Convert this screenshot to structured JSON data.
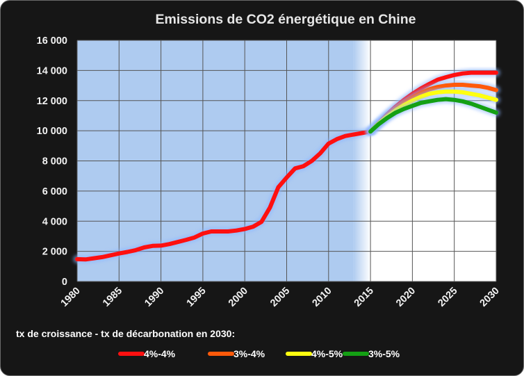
{
  "chart_data": {
    "type": "line",
    "title": "Emissions de CO2 énergétique en Chine",
    "xlabel": "",
    "ylabel": "",
    "xlim": [
      1980,
      2030
    ],
    "ylim": [
      0,
      16000
    ],
    "x_ticks": [
      "1980",
      "1985",
      "1990",
      "1995",
      "2000",
      "2005",
      "2010",
      "2015",
      "2020",
      "2025",
      "2030"
    ],
    "y_ticks": [
      "0",
      "2 000",
      "4 000",
      "6 000",
      "8 000",
      "10 000",
      "12 000",
      "14 000",
      "16 000"
    ],
    "grid": true,
    "historical_shading": [
      1980,
      2015
    ],
    "legend_title": "tx de croissance - tx de décarbonation en 2030:",
    "legend_position": "bottom",
    "historical": {
      "color": "#ff1010",
      "x": [
        1980,
        1981,
        1982,
        1983,
        1984,
        1985,
        1986,
        1987,
        1988,
        1989,
        1990,
        1991,
        1992,
        1993,
        1994,
        1995,
        1996,
        1997,
        1998,
        1999,
        2000,
        2001,
        2002,
        2003,
        2004,
        2005,
        2006,
        2007,
        2008,
        2009,
        2010,
        2011,
        2012,
        2013,
        2014,
        2015
      ],
      "y": [
        1480,
        1460,
        1540,
        1620,
        1740,
        1860,
        1960,
        2080,
        2260,
        2360,
        2380,
        2480,
        2620,
        2760,
        2920,
        3180,
        3320,
        3320,
        3320,
        3380,
        3480,
        3640,
        3960,
        4900,
        6250,
        6900,
        7500,
        7650,
        8000,
        8500,
        9150,
        9450,
        9650,
        9750,
        9850,
        9950
      ]
    },
    "series": [
      {
        "name": "4%-4%",
        "color": "#ff1010",
        "x": [
          2015,
          2016,
          2017,
          2018,
          2019,
          2020,
          2021,
          2022,
          2023,
          2024,
          2025,
          2026,
          2027,
          2028,
          2029,
          2030
        ],
        "y": [
          9950,
          10550,
          11100,
          11600,
          12050,
          12450,
          12800,
          13100,
          13380,
          13550,
          13700,
          13800,
          13850,
          13850,
          13850,
          13850
        ]
      },
      {
        "name": "3%-4%",
        "color": "#ff5a0a",
        "x": [
          2015,
          2016,
          2017,
          2018,
          2019,
          2020,
          2021,
          2022,
          2023,
          2024,
          2025,
          2026,
          2027,
          2028,
          2029,
          2030
        ],
        "y": [
          9950,
          10500,
          11000,
          11450,
          11850,
          12200,
          12500,
          12750,
          12900,
          13000,
          13050,
          13050,
          13000,
          12950,
          12850,
          12700
        ]
      },
      {
        "name": "4%-5%",
        "color": "#ffff10",
        "x": [
          2015,
          2016,
          2017,
          2018,
          2019,
          2020,
          2021,
          2022,
          2023,
          2024,
          2025,
          2026,
          2027,
          2028,
          2029,
          2030
        ],
        "y": [
          9950,
          10500,
          10950,
          11350,
          11700,
          12000,
          12250,
          12450,
          12550,
          12600,
          12600,
          12550,
          12450,
          12350,
          12200,
          12050
        ]
      },
      {
        "name": "3%-5%",
        "color": "#14a014",
        "x": [
          2015,
          2016,
          2017,
          2018,
          2019,
          2020,
          2021,
          2022,
          2023,
          2024,
          2025,
          2026,
          2027,
          2028,
          2029,
          2030
        ],
        "y": [
          9950,
          10450,
          10850,
          11200,
          11450,
          11650,
          11850,
          11950,
          12050,
          12100,
          12050,
          11950,
          11800,
          11600,
          11400,
          11200
        ]
      }
    ]
  }
}
